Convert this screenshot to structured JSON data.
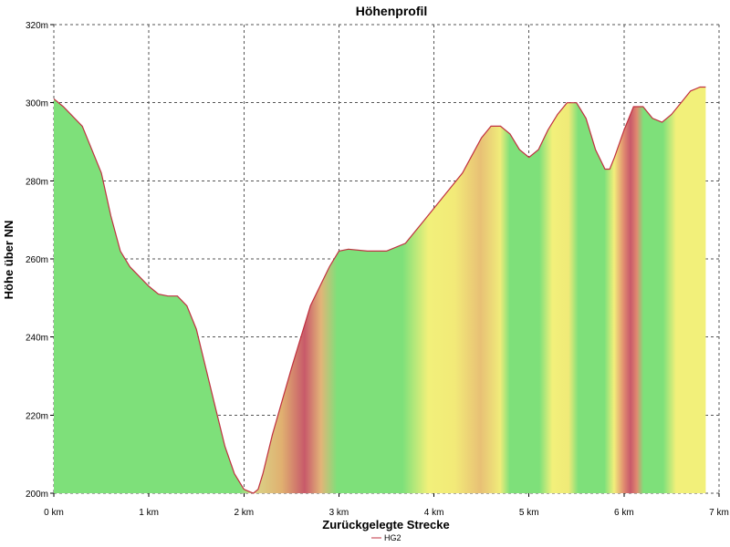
{
  "chart_data": {
    "type": "area",
    "title": "Höhenprofil",
    "xlabel": "Zurückgelegte Strecke",
    "ylabel": "Höhe über NN",
    "xlim": [
      0,
      7
    ],
    "ylim": [
      200,
      320
    ],
    "x_ticks": [
      0,
      1,
      2,
      3,
      4,
      5,
      6,
      7
    ],
    "x_tick_labels": [
      "0 km",
      "1 km",
      "2 km",
      "3 km",
      "4 km",
      "5 km",
      "6 km",
      "7 km"
    ],
    "y_ticks": [
      200,
      220,
      240,
      260,
      280,
      300,
      320
    ],
    "y_tick_labels": [
      "200m",
      "220m",
      "240m",
      "260m",
      "280m",
      "300m",
      "320m"
    ],
    "grid": true,
    "legend_position": "bottom-center",
    "series": [
      {
        "name": "HG2",
        "line_color": "#c03040",
        "x": [
          0,
          0.1,
          0.3,
          0.5,
          0.6,
          0.7,
          0.8,
          0.9,
          1.0,
          1.1,
          1.2,
          1.3,
          1.4,
          1.5,
          1.6,
          1.7,
          1.8,
          1.9,
          2.0,
          2.05,
          2.1,
          2.15,
          2.2,
          2.3,
          2.5,
          2.7,
          2.9,
          3.0,
          3.1,
          3.3,
          3.5,
          3.7,
          3.9,
          4.1,
          4.3,
          4.5,
          4.6,
          4.7,
          4.8,
          4.9,
          5.0,
          5.1,
          5.2,
          5.3,
          5.4,
          5.5,
          5.6,
          5.7,
          5.8,
          5.85,
          5.9,
          6.0,
          6.1,
          6.2,
          6.3,
          6.4,
          6.5,
          6.6,
          6.7,
          6.8,
          6.86
        ],
        "y": [
          301,
          299,
          294,
          282,
          271,
          262,
          258,
          255.5,
          253,
          251,
          250.5,
          250.5,
          248,
          242,
          232,
          222,
          212,
          205,
          201,
          200.5,
          200,
          201,
          205,
          215,
          232,
          248,
          258,
          262,
          262.5,
          262,
          262,
          264,
          270,
          276,
          282,
          291,
          294,
          294,
          292,
          288,
          286,
          288,
          293,
          297,
          300,
          300,
          296,
          288,
          283,
          283,
          286,
          293,
          299,
          299,
          296,
          295,
          297,
          300,
          303,
          304,
          304
        ]
      }
    ],
    "fill_color_bands": [
      {
        "x": [
          0,
          2.15
        ],
        "color": "green"
      },
      {
        "x": [
          2.15,
          2.5
        ],
        "color": "yellow-to-red"
      },
      {
        "x": [
          2.5,
          2.9
        ],
        "color": "red"
      },
      {
        "x": [
          2.9,
          3.8
        ],
        "color": "green"
      },
      {
        "x": [
          3.8,
          4.3
        ],
        "color": "yellow"
      },
      {
        "x": [
          4.3,
          4.55
        ],
        "color": "orange"
      },
      {
        "x": [
          4.55,
          5.1
        ],
        "color": "green"
      },
      {
        "x": [
          5.1,
          5.45
        ],
        "color": "yellow"
      },
      {
        "x": [
          5.45,
          5.8
        ],
        "color": "green"
      },
      {
        "x": [
          5.8,
          5.95
        ],
        "color": "yellow"
      },
      {
        "x": [
          5.95,
          6.1
        ],
        "color": "red"
      },
      {
        "x": [
          6.1,
          6.45
        ],
        "color": "green"
      },
      {
        "x": [
          6.45,
          6.86
        ],
        "color": "yellow"
      }
    ]
  }
}
